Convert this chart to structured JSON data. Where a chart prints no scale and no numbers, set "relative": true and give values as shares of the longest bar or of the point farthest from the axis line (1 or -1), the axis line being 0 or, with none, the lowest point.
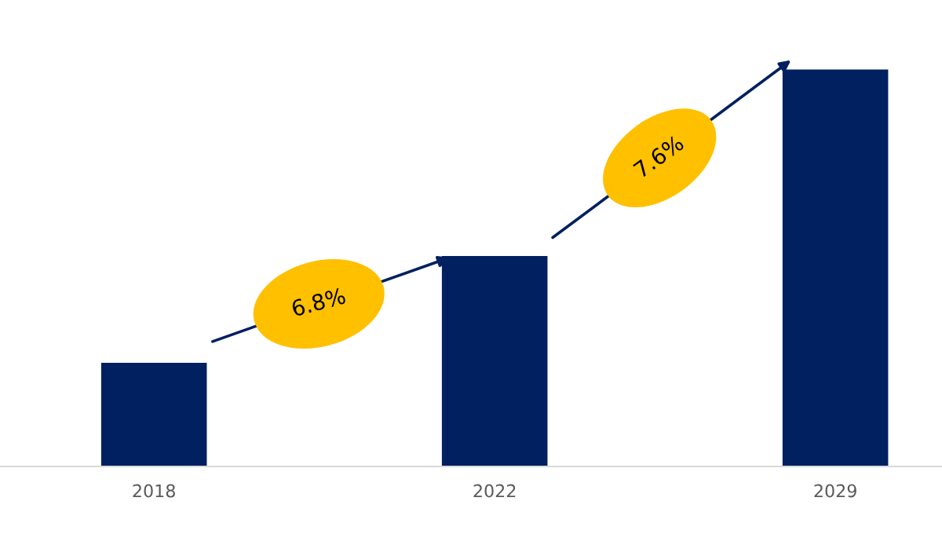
{
  "chart_data": {
    "type": "bar",
    "relative": true,
    "categories": [
      "2018",
      "2022",
      "2029"
    ],
    "values": [
      0.261,
      0.53,
      1
    ],
    "color": "#002060",
    "annotations": [
      "6.8%",
      "7.6%"
    ],
    "grid": false
  }
}
